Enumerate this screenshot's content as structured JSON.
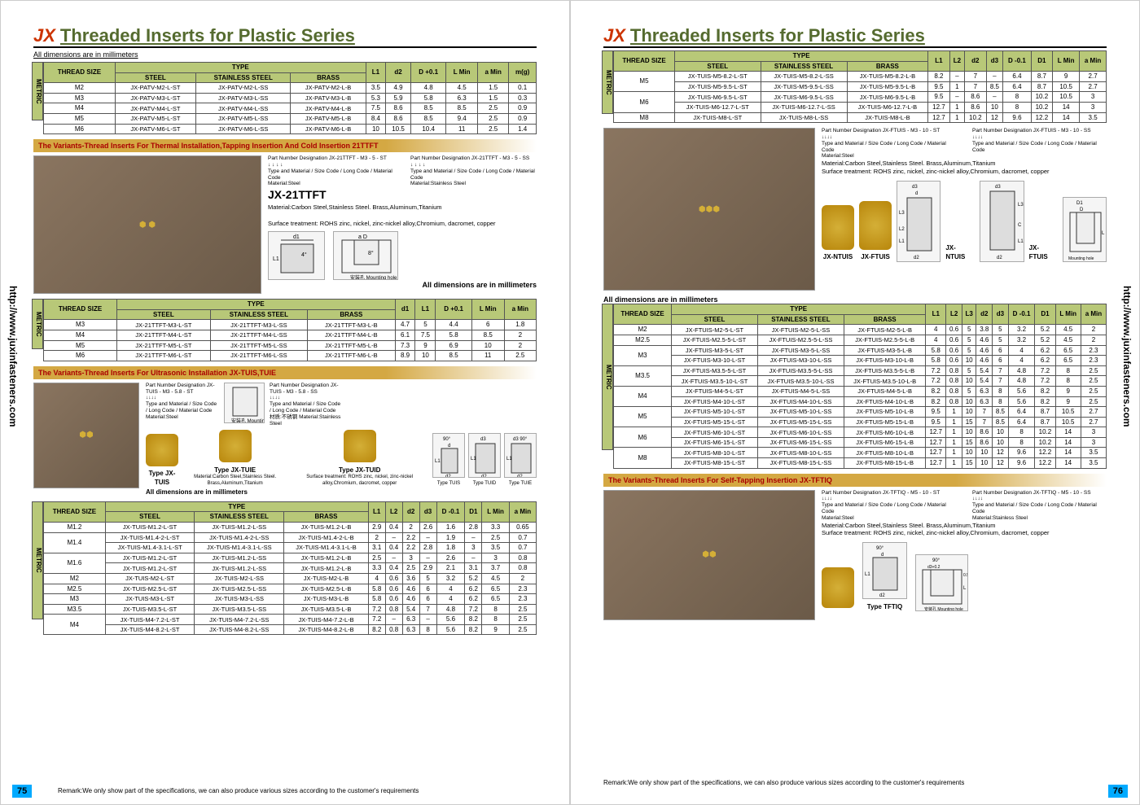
{
  "header": {
    "logo": "JX",
    "title": "Threaded Inserts for Plastic Series",
    "dim_note": "All dimensions are in millimeters"
  },
  "url": "http://www.juxinfasteners.com",
  "page_left": "75",
  "page_right": "76",
  "remark": "Remark:We only show part of the specifications, we can also produce various sizes according to the customer's requirements",
  "remark2": "Remark:We only show part of the specifications, we can also produce various sizes according to the customer's requirements",
  "metric_label": "METRIC",
  "type_label": "TYPE",
  "col_thread": "THREAD SIZE",
  "col_steel": "STEEL",
  "col_ss": "STAINLESS STEEL",
  "col_brass": "BRASS",
  "table1": {
    "cols": [
      "L1",
      "d2",
      "D +0.1",
      "L Min",
      "a Min",
      "m(g)"
    ],
    "rows": [
      {
        "t": "M2",
        "p": [
          "JX-PATV-M2-L-ST",
          "JX-PATV-M2-L-SS",
          "JX-PATV-M2-L-B"
        ],
        "d": [
          "3.5",
          "4.9",
          "4.8",
          "4.5",
          "1.5",
          "0.1"
        ]
      },
      {
        "t": "M3",
        "p": [
          "JX-PATV-M3-L-ST",
          "JX-PATV-M3-L-SS",
          "JX-PATV-M3-L-B"
        ],
        "d": [
          "5.3",
          "5.9",
          "5.8",
          "6.3",
          "1.5",
          "0.3"
        ]
      },
      {
        "t": "M4",
        "p": [
          "JX-PATV-M4-L-ST",
          "JX-PATV-M4-L-SS",
          "JX-PATV-M4-L-B"
        ],
        "d": [
          "7.5",
          "8.6",
          "8.5",
          "8.5",
          "2.5",
          "0.9"
        ]
      },
      {
        "t": "M5",
        "p": [
          "JX-PATV-M5-L-ST",
          "JX-PATV-M5-L-SS",
          "JX-PATV-M5-L-B"
        ],
        "d": [
          "8.4",
          "8.6",
          "8.5",
          "9.4",
          "2.5",
          "0.9"
        ]
      },
      {
        "t": "M6",
        "p": [
          "JX-PATV-M6-L-ST",
          "JX-PATV-M6-L-SS",
          "JX-PATV-M6-L-B"
        ],
        "d": [
          "10",
          "10.5",
          "10.4",
          "11",
          "2.5",
          "1.4"
        ]
      }
    ]
  },
  "variant1": "The Variants-Thread Inserts For Thermal Installation,Tapping Insertion And Cold Insertion 21TTFT",
  "product1": {
    "name": "JX-21TTFT",
    "material": "Material:Carbon Steel,Stainless Steel. Brass,Aluminum,Titanium",
    "surface": "Surface treatment: ROHS zinc, nickel, zinc-nickel alloy,Chromium, dacromet, copper",
    "pn1": "Part Number Designation JX-21TTFT - M3 - 5 - ST",
    "pn1_sub": "Type and Material / Size Code / Long Code / Material Code",
    "mat1": "Material:Steel",
    "pn2": "Part Number Designation JX-21TTFT - M3 - 5 - SS",
    "mat2": "Material:Stainless Steel",
    "mh": "安装孔 Mounting hole",
    "dim_d1": "d1",
    "dim_a": "a",
    "dim_D": "D",
    "dim_L1": "L1"
  },
  "table2": {
    "cols": [
      "d1",
      "L1",
      "D +0.1",
      "L Min",
      "a Min"
    ],
    "rows": [
      {
        "t": "M3",
        "p": [
          "JX-21TTFT-M3-L-ST",
          "JX-21TTFT-M3-L-SS",
          "JX-21TTFT-M3-L-B"
        ],
        "d": [
          "4.7",
          "5",
          "4.4",
          "6",
          "1.8"
        ]
      },
      {
        "t": "M4",
        "p": [
          "JX-21TTFT-M4-L-ST",
          "JX-21TTFT-M4-L-SS",
          "JX-21TTFT-M4-L-B"
        ],
        "d": [
          "6.1",
          "7.5",
          "5.8",
          "8.5",
          "2"
        ]
      },
      {
        "t": "M5",
        "p": [
          "JX-21TTFT-M5-L-ST",
          "JX-21TTFT-M5-L-SS",
          "JX-21TTFT-M5-L-B"
        ],
        "d": [
          "7.3",
          "9",
          "6.9",
          "10",
          "2"
        ]
      },
      {
        "t": "M6",
        "p": [
          "JX-21TTFT-M6-L-ST",
          "JX-21TTFT-M6-L-SS",
          "JX-21TTFT-M6-L-B"
        ],
        "d": [
          "8.9",
          "10",
          "8.5",
          "11",
          "2.5"
        ]
      }
    ]
  },
  "variant2": "The Variants-Thread Inserts For Ultrasonic Installation JX-TUIS,TUIE",
  "product2": {
    "pn1": "Part Number Designation JX-TUIS - M3 - 5.8 - ST",
    "pn1_sub": "Type and Material / Size Code / Long Code / Material Code",
    "mat1": "Material:Steel",
    "pn2": "Part Number Designation JX-TUIS - M3 - 5.8 - SS",
    "mat2": "材质:不锈钢 Material:Stainless Steel",
    "t1": "Type JX-TUIS",
    "t2": "Type JX-TUIE",
    "t3": "Type JX-TUID",
    "material": "Material:Carbon Steel,Stainless Steel. Brass,Aluminum,Titanium",
    "surface": "Surface treatment: ROHS zinc, nickel, zinc-nickel alloy,Chromium, dacromet, copper",
    "mh": "安装孔 Mounting hole",
    "tlabels": [
      "Type TUIS",
      "Type TUID",
      "Type TUIE"
    ]
  },
  "table3": {
    "cols": [
      "L1",
      "L2",
      "d2",
      "d3",
      "D -0.1",
      "D1",
      "L Min",
      "a Min"
    ],
    "rows": [
      {
        "t": "M1.2",
        "rs": 1,
        "p": [
          "JX-TUIS-M1.2-L-ST",
          "JX-TUIS-M1.2-L-SS",
          "JX-TUIS-M1.2-L-B"
        ],
        "d": [
          "2.9",
          "0.4",
          "2",
          "2.6",
          "1.6",
          "2.8",
          "3.3",
          "0.65"
        ]
      },
      {
        "t": "M1.4",
        "rs": 2,
        "p": [
          "JX-TUIS-M1.4-2-L-ST",
          "JX-TUIS-M1.4-2-L-SS",
          "JX-TUIS-M1.4-2-L-B"
        ],
        "d": [
          "2",
          "–",
          "2.2",
          "–",
          "1.9",
          "–",
          "2.5",
          "0.7"
        ]
      },
      {
        "t": "",
        "rs": 0,
        "p": [
          "JX-TUIS-M1.4-3.1-L-ST",
          "JX-TUIS-M1.4-3.1-L-SS",
          "JX-TUIS-M1.4-3.1-L-B"
        ],
        "d": [
          "3.1",
          "0.4",
          "2.2",
          "2.8",
          "1.8",
          "3",
          "3.5",
          "0.7"
        ]
      },
      {
        "t": "M1.6",
        "rs": 2,
        "p": [
          "JX-TUIS-M1.2-L-ST",
          "JX-TUIS-M1.2-L-SS",
          "JX-TUIS-M1.2-L-B"
        ],
        "d": [
          "2.5",
          "–",
          "3",
          "–",
          "2.6",
          "–",
          "3",
          "0.8"
        ]
      },
      {
        "t": "",
        "rs": 0,
        "p": [
          "JX-TUIS-M1.2-L-ST",
          "JX-TUIS-M1.2-L-SS",
          "JX-TUIS-M1.2-L-B"
        ],
        "d": [
          "3.3",
          "0.4",
          "2.5",
          "2.9",
          "2.1",
          "3.1",
          "3.7",
          "0.8"
        ]
      },
      {
        "t": "M2",
        "rs": 1,
        "p": [
          "JX-TUIS-M2-L-ST",
          "JX-TUIS-M2-L-SS",
          "JX-TUIS-M2-L-B"
        ],
        "d": [
          "4",
          "0.6",
          "3.6",
          "5",
          "3.2",
          "5.2",
          "4.5",
          "2"
        ]
      },
      {
        "t": "M2.5",
        "rs": 1,
        "p": [
          "JX-TUIS-M2.5-L-ST",
          "JX-TUIS-M2.5-L-SS",
          "JX-TUIS-M2.5-L-B"
        ],
        "d": [
          "5.8",
          "0.6",
          "4.6",
          "6",
          "4",
          "6.2",
          "6.5",
          "2.3"
        ]
      },
      {
        "t": "M3",
        "rs": 1,
        "p": [
          "JX-TUIS-M3-L-ST",
          "JX-TUIS-M3-L-SS",
          "JX-TUIS-M3-L-B"
        ],
        "d": [
          "5.8",
          "0.6",
          "4.6",
          "6",
          "4",
          "6.2",
          "6.5",
          "2.3"
        ]
      },
      {
        "t": "M3.5",
        "rs": 1,
        "p": [
          "JX-TUIS-M3.5-L-ST",
          "JX-TUIS-M3.5-L-SS",
          "JX-TUIS-M3.5-L-B"
        ],
        "d": [
          "7.2",
          "0.8",
          "5.4",
          "7",
          "4.8",
          "7.2",
          "8",
          "2.5"
        ]
      },
      {
        "t": "M4",
        "rs": 2,
        "p": [
          "JX-TUIS-M4-7.2-L-ST",
          "JX-TUIS-M4-7.2-L-SS",
          "JX-TUIS-M4-7.2-L-B"
        ],
        "d": [
          "7.2",
          "–",
          "6.3",
          "–",
          "5.6",
          "8.2",
          "8",
          "2.5"
        ]
      },
      {
        "t": "",
        "rs": 0,
        "p": [
          "JX-TUIS-M4-8.2-L-ST",
          "JX-TUIS-M4-8.2-L-SS",
          "JX-TUIS-M4-8.2-L-B"
        ],
        "d": [
          "8.2",
          "0.8",
          "6.3",
          "8",
          "5.6",
          "8.2",
          "9",
          "2.5"
        ]
      }
    ]
  },
  "table4": {
    "cols": [
      "L1",
      "L2",
      "d2",
      "d3",
      "D -0.1",
      "D1",
      "L Min",
      "a Min"
    ],
    "rows": [
      {
        "t": "M5",
        "rs": 2,
        "p": [
          "JX-TUIS-M5-8.2-L-ST",
          "JX-TUIS-M5-8.2-L-SS",
          "JX-TUIS-M5-8.2-L-B"
        ],
        "d": [
          "8.2",
          "–",
          "7",
          "–",
          "6.4",
          "8.7",
          "9",
          "2.7"
        ]
      },
      {
        "t": "",
        "rs": 0,
        "p": [
          "JX-TUIS-M5-9.5-L-ST",
          "JX-TUIS-M5-9.5-L-SS",
          "JX-TUIS-M5-9.5-L-B"
        ],
        "d": [
          "9.5",
          "1",
          "7",
          "8.5",
          "6.4",
          "8.7",
          "10.5",
          "2.7"
        ]
      },
      {
        "t": "M6",
        "rs": 2,
        "p": [
          "JX-TUIS-M6-9.5-L-ST",
          "JX-TUIS-M6-9.5-L-SS",
          "JX-TUIS-M6-9.5-L-B"
        ],
        "d": [
          "9.5",
          "–",
          "8.6",
          "–",
          "8",
          "10.2",
          "10.5",
          "3"
        ]
      },
      {
        "t": "",
        "rs": 0,
        "p": [
          "JX-TUIS-M6-12.7-L-ST",
          "JX-TUIS-M6-12.7-L-SS",
          "JX-TUIS-M6-12.7-L-B"
        ],
        "d": [
          "12.7",
          "1",
          "8.6",
          "10",
          "8",
          "10.2",
          "14",
          "3"
        ]
      },
      {
        "t": "M8",
        "rs": 1,
        "p": [
          "JX-TUIS-M8-L-ST",
          "JX-TUIS-M8-L-SS",
          "JX-TUIS-M8-L-B"
        ],
        "d": [
          "12.7",
          "1",
          "10.2",
          "12",
          "9.6",
          "12.2",
          "14",
          "3.5"
        ]
      }
    ]
  },
  "product3": {
    "pn1": "Part Number Designation JX-FTUIS - M3 - 10 - ST",
    "pn2": "Part Number Designation JX-FTUIS - M3 - 10 - SS",
    "sub": "Type and Material / Size Code / Long Code / Material Code",
    "mat1": "Material:Steel",
    "mat2": "Material:Carbon Steel,Stainless Steel. Brass,Aluminum,Titanium",
    "surface": "Surface treatment: ROHS zinc, nickel, zinc-nickel alloy,Chromium, dacromet, copper",
    "l1": "JX-NTUIS",
    "l2": "JX-FTUIS",
    "l3": "JX-NTUIS",
    "l4": "JX-FTUIS",
    "mh": "Mounting hole"
  },
  "table5": {
    "cols": [
      "L1",
      "L2",
      "L3",
      "d2",
      "d3",
      "D -0.1",
      "D1",
      "L Min",
      "a Min"
    ],
    "rows": [
      {
        "t": "M2",
        "rs": 1,
        "p": [
          "JX-FTUIS-M2-5-L-ST",
          "JX-FTUIS-M2-5-L-SS",
          "JX-FTUIS-M2-5-L-B"
        ],
        "d": [
          "4",
          "0.6",
          "5",
          "3.8",
          "5",
          "3.2",
          "5.2",
          "4.5",
          "2"
        ]
      },
      {
        "t": "M2.5",
        "rs": 1,
        "p": [
          "JX-FTUIS-M2.5-5-L-ST",
          "JX-FTUIS-M2.5-5-L-SS",
          "JX-FTUIS-M2.5-5-L-B"
        ],
        "d": [
          "4",
          "0.6",
          "5",
          "4.6",
          "5",
          "3.2",
          "5.2",
          "4.5",
          "2"
        ]
      },
      {
        "t": "M3",
        "rs": 2,
        "p": [
          "JX-FTUIS-M3-5-L-ST",
          "JX-FTUIS-M3-5-L-SS",
          "JX-FTUIS-M3-5-L-B"
        ],
        "d": [
          "5.8",
          "0.6",
          "5",
          "4.6",
          "6",
          "4",
          "6.2",
          "6.5",
          "2.3"
        ]
      },
      {
        "t": "",
        "rs": 0,
        "p": [
          "JX-FTUIS-M3-10-L-ST",
          "JX-FTUIS-M3-10-L-SS",
          "JX-FTUIS-M3-10-L-B"
        ],
        "d": [
          "5.8",
          "0.6",
          "10",
          "4.6",
          "6",
          "4",
          "6.2",
          "6.5",
          "2.3"
        ]
      },
      {
        "t": "M3.5",
        "rs": 2,
        "p": [
          "JX-FTUIS-M3.5-5-L-ST",
          "JX-FTUIS-M3.5-5-L-SS",
          "JX-FTUIS-M3.5-5-L-B"
        ],
        "d": [
          "7.2",
          "0.8",
          "5",
          "5.4",
          "7",
          "4.8",
          "7.2",
          "8",
          "2.5"
        ]
      },
      {
        "t": "",
        "rs": 0,
        "p": [
          "JX-FTUIS-M3.5-10-L-ST",
          "JX-FTUIS-M3.5-10-L-SS",
          "JX-FTUIS-M3.5-10-L-B"
        ],
        "d": [
          "7.2",
          "0.8",
          "10",
          "5.4",
          "7",
          "4.8",
          "7.2",
          "8",
          "2.5"
        ]
      },
      {
        "t": "M4",
        "rs": 2,
        "p": [
          "JX-FTUIS-M4-5-L-ST",
          "JX-FTUIS-M4-5-L-SS",
          "JX-FTUIS-M4-5-L-B"
        ],
        "d": [
          "8.2",
          "0.8",
          "5",
          "6.3",
          "8",
          "5.6",
          "8.2",
          "9",
          "2.5"
        ]
      },
      {
        "t": "",
        "rs": 0,
        "p": [
          "JX-FTUIS-M4-10-L-ST",
          "JX-FTUIS-M4-10-L-SS",
          "JX-FTUIS-M4-10-L-B"
        ],
        "d": [
          "8.2",
          "0.8",
          "10",
          "6.3",
          "8",
          "5.6",
          "8.2",
          "9",
          "2.5"
        ]
      },
      {
        "t": "M5",
        "rs": 2,
        "p": [
          "JX-FTUIS-M5-10-L-ST",
          "JX-FTUIS-M5-10-L-SS",
          "JX-FTUIS-M5-10-L-B"
        ],
        "d": [
          "9.5",
          "1",
          "10",
          "7",
          "8.5",
          "6.4",
          "8.7",
          "10.5",
          "2.7"
        ]
      },
      {
        "t": "",
        "rs": 0,
        "p": [
          "JX-FTUIS-M5-15-L-ST",
          "JX-FTUIS-M5-15-L-SS",
          "JX-FTUIS-M5-15-L-B"
        ],
        "d": [
          "9.5",
          "1",
          "15",
          "7",
          "8.5",
          "6.4",
          "8.7",
          "10.5",
          "2.7"
        ]
      },
      {
        "t": "M6",
        "rs": 2,
        "p": [
          "JX-FTUIS-M6-10-L-ST",
          "JX-FTUIS-M6-10-L-SS",
          "JX-FTUIS-M6-10-L-B"
        ],
        "d": [
          "12.7",
          "1",
          "10",
          "8.6",
          "10",
          "8",
          "10.2",
          "14",
          "3"
        ]
      },
      {
        "t": "",
        "rs": 0,
        "p": [
          "JX-FTUIS-M6-15-L-ST",
          "JX-FTUIS-M6-15-L-SS",
          "JX-FTUIS-M6-15-L-B"
        ],
        "d": [
          "12.7",
          "1",
          "15",
          "8.6",
          "10",
          "8",
          "10.2",
          "14",
          "3"
        ]
      },
      {
        "t": "M8",
        "rs": 2,
        "p": [
          "JX-FTUIS-M8-10-L-ST",
          "JX-FTUIS-M8-10-L-SS",
          "JX-FTUIS-M8-10-L-B"
        ],
        "d": [
          "12.7",
          "1",
          "10",
          "10",
          "12",
          "9.6",
          "12.2",
          "14",
          "3.5"
        ]
      },
      {
        "t": "",
        "rs": 0,
        "p": [
          "JX-FTUIS-M8-15-L-ST",
          "JX-FTUIS-M8-15-L-SS",
          "JX-FTUIS-M8-15-L-B"
        ],
        "d": [
          "12.7",
          "1",
          "15",
          "10",
          "12",
          "9.6",
          "12.2",
          "14",
          "3.5"
        ]
      }
    ]
  },
  "variant3": "The Variants-Thread Inserts For Self-Tapping Insertion JX-TFTIQ",
  "product4": {
    "pn1": "Part Number Designation JX-TFTIQ - M5 - 10 - ST",
    "pn2": "Part Number Designation JX-TFTIQ - M5 - 10 - SS",
    "sub": "Type and Material / Size Code / Long Code / Material Code",
    "mat1": "Material:Steel",
    "mat2": "Material:Stainless Steel",
    "material": "Material:Carbon Steel,Stainless Steel. Brass,Aluminum,Titanium",
    "surface": "Surface treatment: ROHS zinc, nickel, zinc-nickel alloy,Chromium, dacromet, copper",
    "tl": "Type TFTIQ",
    "mh": "安装孔 Mounting hole"
  },
  "colors": {
    "accent": "#b8c878",
    "variant_bg": "#d4a843",
    "variant_text": "#a00",
    "title": "#556b2f",
    "logo": "#c30",
    "pagenum": "#0af"
  }
}
